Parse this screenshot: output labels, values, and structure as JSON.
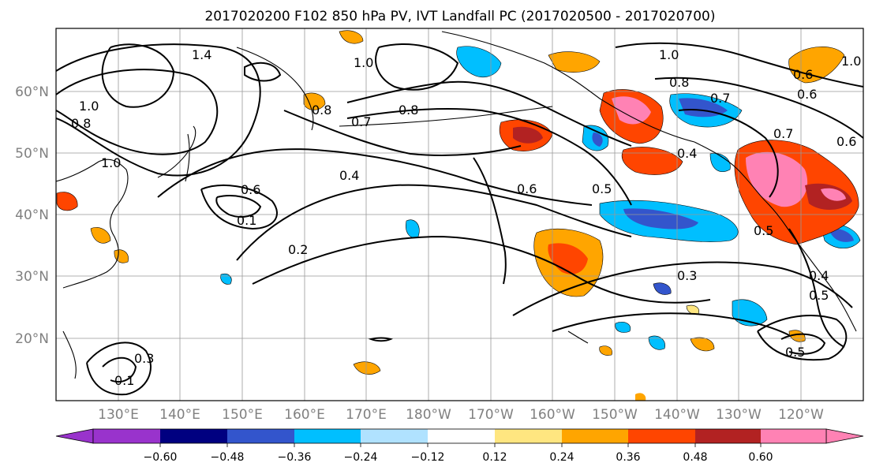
{
  "title": "2017020200 F102 850 hPa PV, IVT Landfall PC (2017020500 - 2017020700)",
  "lat_labels": [
    "60°N",
    "50°N",
    "40°N",
    "30°N",
    "20°N"
  ],
  "lon_labels": [
    "130°E",
    "140°E",
    "150°E",
    "160°E",
    "170°E",
    "180°W",
    "170°W",
    "160°W",
    "150°W",
    "140°W",
    "130°W",
    "120°W"
  ],
  "colorbar": {
    "colors": [
      "#9933cc",
      "#000080",
      "#3355cc",
      "#00bfff",
      "#b0e2ff",
      "#ffffff",
      "#ffe680",
      "#ffa500",
      "#ff4500",
      "#b22222",
      "#ff82b4"
    ],
    "ticks": [
      "−0.60",
      "−0.48",
      "−0.36",
      "−0.24",
      "−0.12",
      "0.12",
      "0.24",
      "0.36",
      "0.48",
      "0.60"
    ]
  },
  "contour_labels": [
    "1.4",
    "1.0",
    "1.0",
    "0.8",
    "0.8",
    "0.7",
    "0.8",
    "1.0",
    "0.8",
    "0.7",
    "0.6",
    "0.6",
    "1.0",
    "0.6",
    "0.4",
    "0.6",
    "0.5",
    "0.1",
    "0.2",
    "0.5",
    "0.3",
    "0.4",
    "0.5",
    "0.5",
    "0.3",
    "0.1",
    "0.6",
    "0.7",
    "0.4",
    "1.0"
  ]
}
